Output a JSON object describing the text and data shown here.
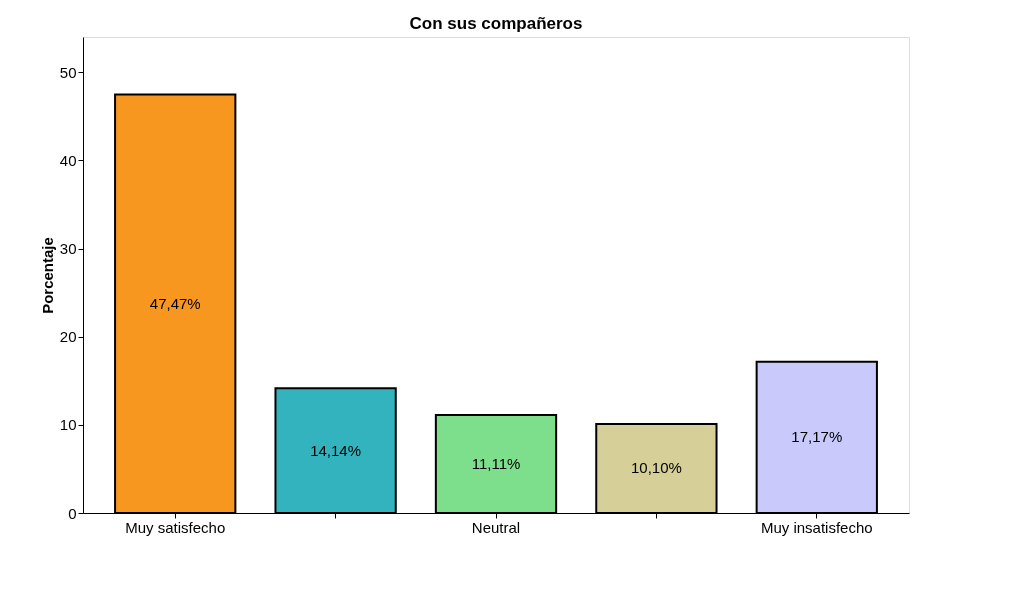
{
  "chart_data": {
    "type": "bar",
    "title": "Con sus compañeros",
    "ylabel": "Porcentaje",
    "categories": [
      "Muy satisfecho",
      null,
      "Neutral",
      null,
      "Muy insatisfecho"
    ],
    "values": [
      47.47,
      14.14,
      11.11,
      10.1,
      17.17
    ],
    "colors": [
      "#f7971f",
      "#33b3bd",
      "#7ddf8c",
      "#d6cf97",
      "#c9c9fb"
    ],
    "value_labels": [
      "47,47%",
      "14,14%",
      "11,11%",
      "10,10%",
      "17,17%"
    ],
    "ylim": [
      0,
      54
    ],
    "yticks": [
      0,
      10,
      20,
      30,
      40,
      50
    ],
    "grid": false
  }
}
